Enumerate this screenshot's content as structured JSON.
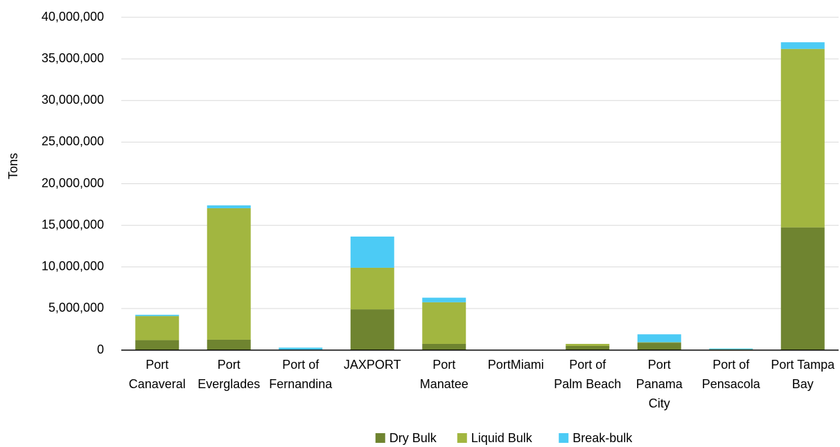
{
  "chart_data": {
    "type": "stacked_bar",
    "y_label": "Tons",
    "categories": [
      [
        "Port",
        "Canaveral"
      ],
      [
        "Port",
        "Everglades"
      ],
      [
        "Port of",
        "Fernandina"
      ],
      [
        "JAXPORT"
      ],
      [
        "Port",
        "Manatee"
      ],
      [
        "PortMiami"
      ],
      [
        "Port of",
        "Palm Beach"
      ],
      [
        "Port",
        "Panama",
        "City"
      ],
      [
        "Port of",
        "Pensacola"
      ],
      [
        "Port Tampa",
        "Bay"
      ]
    ],
    "series": [
      {
        "name": "Dry Bulk",
        "color": "#6f8430",
        "values": [
          1200000,
          1250000,
          50000,
          4900000,
          750000,
          0,
          500000,
          900000,
          50000,
          14750000
        ]
      },
      {
        "name": "Liquid Bulk",
        "color": "#a2b640",
        "values": [
          2900000,
          15800000,
          0,
          5000000,
          5000000,
          0,
          250000,
          50000,
          50000,
          21450000
        ]
      },
      {
        "name": "Break-bulk",
        "color": "#4ccbf5",
        "values": [
          150000,
          350000,
          250000,
          3750000,
          550000,
          0,
          0,
          950000,
          100000,
          800000
        ]
      }
    ],
    "ylim": [
      0,
      40000000
    ],
    "yticks": [
      0,
      {
        "value": 5000000,
        "label": "5,000,000"
      },
      {
        "value": 10000000,
        "label": "10,000,000"
      },
      {
        "value": 15000000,
        "label": "15,000,000"
      },
      {
        "value": 20000000,
        "label": "20,000,000"
      },
      {
        "value": 25000000,
        "label": "25,000,000"
      },
      {
        "value": 30000000,
        "label": "30,000,000"
      },
      {
        "value": 35000000,
        "label": "35,000,000"
      },
      {
        "value": 40000000,
        "label": "40,000,000"
      }
    ],
    "grid": true,
    "legend": "bottom"
  }
}
